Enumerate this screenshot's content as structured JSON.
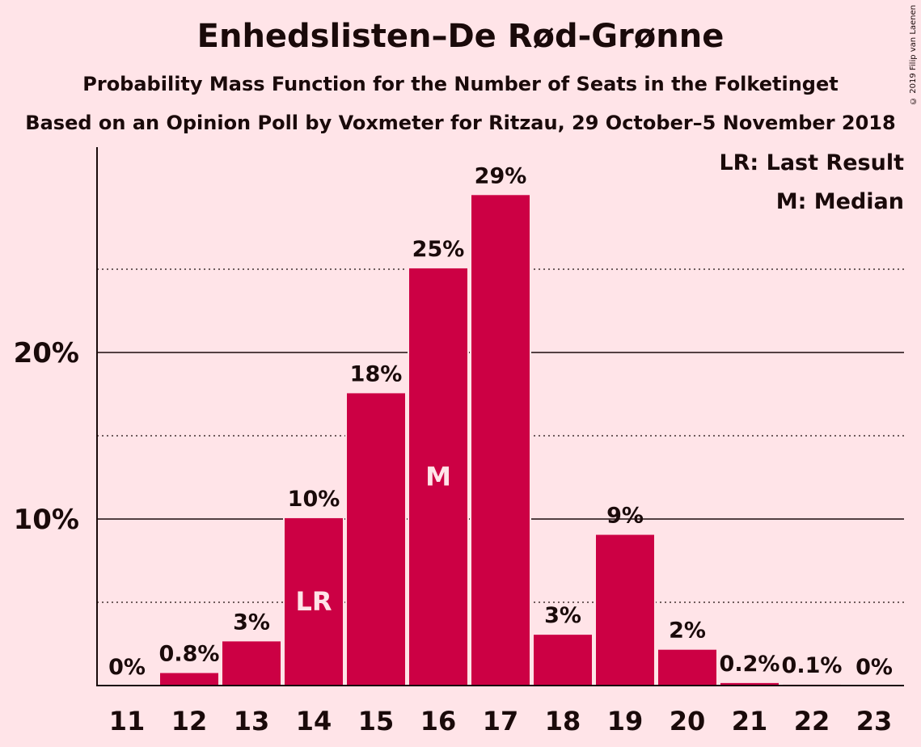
{
  "chart_data": {
    "type": "bar",
    "title": "Enhedslisten–De Rød-Grønne",
    "subtitle": "Probability Mass Function for the Number of Seats in the Folketinget",
    "subtitle2": "Based on an Opinion Poll by Voxmeter for Ritzau, 29 October–5 November 2018",
    "copyright": "© 2019 Filip van Laenen",
    "categories": [
      "11",
      "12",
      "13",
      "14",
      "15",
      "16",
      "17",
      "18",
      "19",
      "20",
      "21",
      "22",
      "23"
    ],
    "values": [
      0,
      0.8,
      2.7,
      10.1,
      17.6,
      25.1,
      29.5,
      3.1,
      9.1,
      2.2,
      0.2,
      0.1,
      0
    ],
    "value_labels": [
      "0%",
      "0.8%",
      "3%",
      "10%",
      "18%",
      "25%",
      "29%",
      "3%",
      "9%",
      "2%",
      "0.2%",
      "0.1%",
      "0%"
    ],
    "bar_markers": {
      "14": "LR",
      "16": "M"
    },
    "y_ticks": [
      {
        "value": 10,
        "label": "10%"
      },
      {
        "value": 20,
        "label": "20%"
      }
    ],
    "y_minor_gridlines": [
      5,
      15,
      25
    ],
    "ylim": [
      0,
      32
    ],
    "legend": [
      "LR: Last Result",
      "M: Median"
    ],
    "legend_position": "top-right",
    "grid": true,
    "colors": {
      "bar": "#cc0044",
      "background": "#ffe4e8",
      "text": "#1a0a0a"
    }
  }
}
